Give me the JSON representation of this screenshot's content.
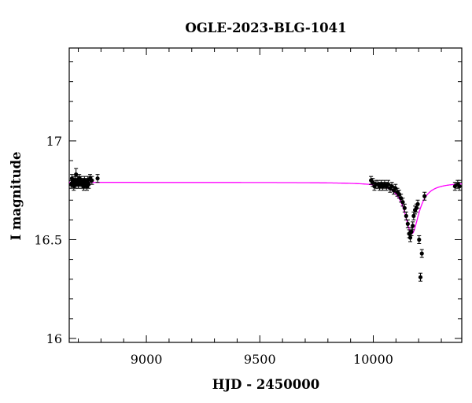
{
  "chart_data": {
    "type": "scatter",
    "title": "OGLE-2023-BLG-1041",
    "xlabel": "HJD - 2450000",
    "ylabel": "I magnitude",
    "xlim": [
      8660,
      10390
    ],
    "ylim": [
      17.47,
      15.98
    ],
    "y_inverted": true,
    "x_ticks": [
      9000,
      9500,
      10000
    ],
    "x_tick_labels": [
      "9000",
      "9500",
      "10000"
    ],
    "y_ticks": [
      16,
      16.5,
      17
    ],
    "y_tick_labels": [
      "16",
      "16.5",
      "17"
    ],
    "grid": false,
    "legend": "none",
    "colors": {
      "data": "#000000",
      "model": "#ff00ff"
    },
    "series": [
      {
        "kind": "points",
        "points": [
          {
            "x": 8668,
            "y": 16.78,
            "err": 0.02
          },
          {
            "x": 8672,
            "y": 16.81,
            "err": 0.02
          },
          {
            "x": 8676,
            "y": 16.79,
            "err": 0.02
          },
          {
            "x": 8680,
            "y": 16.77,
            "err": 0.02
          },
          {
            "x": 8684,
            "y": 16.8,
            "err": 0.02
          },
          {
            "x": 8688,
            "y": 16.78,
            "err": 0.02
          },
          {
            "x": 8690,
            "y": 16.83,
            "err": 0.03
          },
          {
            "x": 8693,
            "y": 16.79,
            "err": 0.02
          },
          {
            "x": 8697,
            "y": 16.8,
            "err": 0.02
          },
          {
            "x": 8700,
            "y": 16.78,
            "err": 0.02
          },
          {
            "x": 8704,
            "y": 16.81,
            "err": 0.02
          },
          {
            "x": 8708,
            "y": 16.79,
            "err": 0.02
          },
          {
            "x": 8712,
            "y": 16.8,
            "err": 0.02
          },
          {
            "x": 8716,
            "y": 16.78,
            "err": 0.02
          },
          {
            "x": 8720,
            "y": 16.79,
            "err": 0.02
          },
          {
            "x": 8724,
            "y": 16.77,
            "err": 0.02
          },
          {
            "x": 8727,
            "y": 16.8,
            "err": 0.02
          },
          {
            "x": 8730,
            "y": 16.78,
            "err": 0.02
          },
          {
            "x": 8734,
            "y": 16.79,
            "err": 0.02
          },
          {
            "x": 8738,
            "y": 16.77,
            "err": 0.02
          },
          {
            "x": 8742,
            "y": 16.8,
            "err": 0.02
          },
          {
            "x": 8746,
            "y": 16.78,
            "err": 0.02
          },
          {
            "x": 8752,
            "y": 16.81,
            "err": 0.02
          },
          {
            "x": 8760,
            "y": 16.8,
            "err": 0.02
          },
          {
            "x": 8785,
            "y": 16.81,
            "err": 0.02
          },
          {
            "x": 9990,
            "y": 16.8,
            "err": 0.02
          },
          {
            "x": 9998,
            "y": 16.79,
            "err": 0.02
          },
          {
            "x": 10005,
            "y": 16.77,
            "err": 0.02
          },
          {
            "x": 10012,
            "y": 16.78,
            "err": 0.02
          },
          {
            "x": 10020,
            "y": 16.78,
            "err": 0.02
          },
          {
            "x": 10028,
            "y": 16.77,
            "err": 0.02
          },
          {
            "x": 10035,
            "y": 16.78,
            "err": 0.02
          },
          {
            "x": 10042,
            "y": 16.77,
            "err": 0.02
          },
          {
            "x": 10050,
            "y": 16.78,
            "err": 0.02
          },
          {
            "x": 10058,
            "y": 16.77,
            "err": 0.02
          },
          {
            "x": 10066,
            "y": 16.78,
            "err": 0.02
          },
          {
            "x": 10074,
            "y": 16.76,
            "err": 0.02
          },
          {
            "x": 10082,
            "y": 16.77,
            "err": 0.02
          },
          {
            "x": 10090,
            "y": 16.75,
            "err": 0.02
          },
          {
            "x": 10098,
            "y": 16.76,
            "err": 0.02
          },
          {
            "x": 10106,
            "y": 16.74,
            "err": 0.02
          },
          {
            "x": 10114,
            "y": 16.73,
            "err": 0.02
          },
          {
            "x": 10122,
            "y": 16.71,
            "err": 0.02
          },
          {
            "x": 10130,
            "y": 16.69,
            "err": 0.02
          },
          {
            "x": 10138,
            "y": 16.66,
            "err": 0.02
          },
          {
            "x": 10145,
            "y": 16.62,
            "err": 0.02
          },
          {
            "x": 10152,
            "y": 16.58,
            "err": 0.02
          },
          {
            "x": 10158,
            "y": 16.53,
            "err": 0.02
          },
          {
            "x": 10163,
            "y": 16.51,
            "err": 0.02
          },
          {
            "x": 10168,
            "y": 16.54,
            "err": 0.02
          },
          {
            "x": 10174,
            "y": 16.57,
            "err": 0.02
          },
          {
            "x": 10178,
            "y": 16.62,
            "err": 0.02
          },
          {
            "x": 10184,
            "y": 16.65,
            "err": 0.02
          },
          {
            "x": 10190,
            "y": 16.66,
            "err": 0.02
          },
          {
            "x": 10196,
            "y": 16.68,
            "err": 0.02
          },
          {
            "x": 10202,
            "y": 16.5,
            "err": 0.02
          },
          {
            "x": 10208,
            "y": 16.31,
            "err": 0.02
          },
          {
            "x": 10214,
            "y": 16.43,
            "err": 0.02
          },
          {
            "x": 10226,
            "y": 16.72,
            "err": 0.02
          },
          {
            "x": 10360,
            "y": 16.77,
            "err": 0.02
          },
          {
            "x": 10372,
            "y": 16.78,
            "err": 0.02
          },
          {
            "x": 10380,
            "y": 16.77,
            "err": 0.02
          }
        ]
      },
      {
        "kind": "model",
        "baseline": 16.79,
        "peak_x": 10170,
        "peak_y": 16.53,
        "t_width": 38
      }
    ]
  }
}
